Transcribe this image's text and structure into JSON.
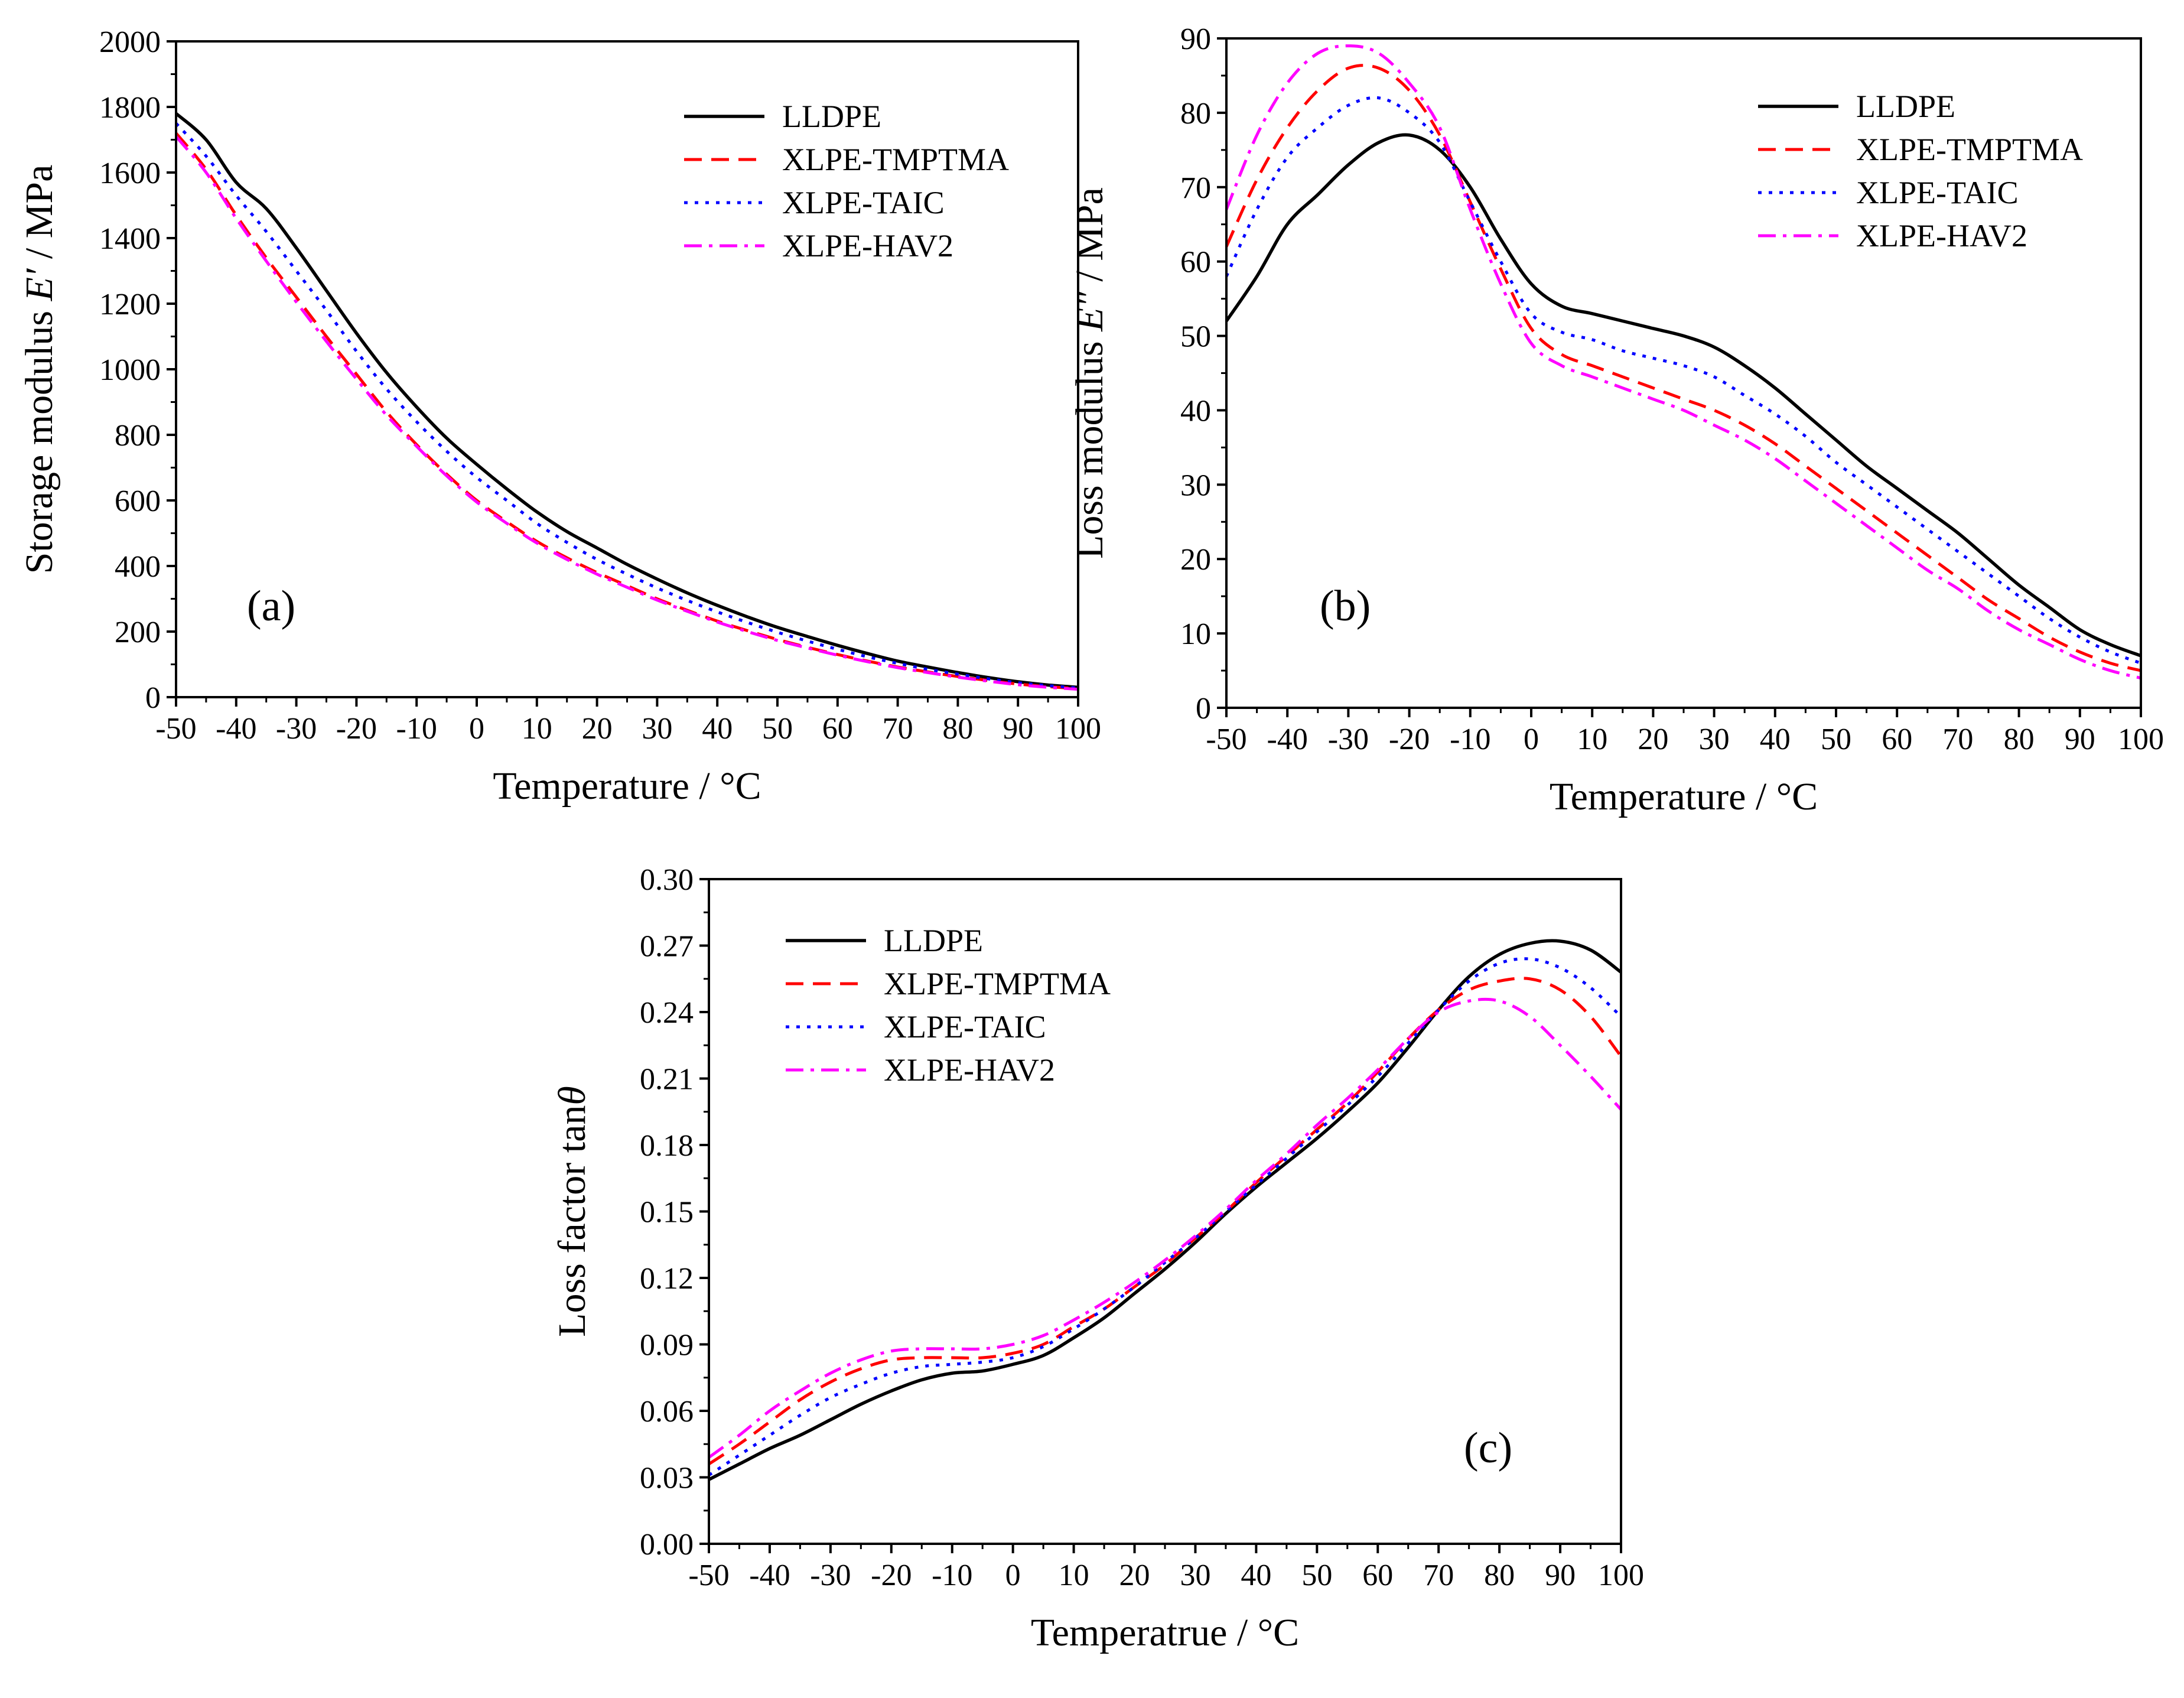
{
  "colors": {
    "LLDPE": "#000000",
    "XLPE-TMPTMA": "#ff0000",
    "XLPE-TAIC": "#0000ff",
    "XLPE-HAV2": "#ff00ff"
  },
  "chart_data": [
    {
      "id": "a",
      "type": "line",
      "panel_label": "(a)",
      "xlabel": "Temperature / °C",
      "ylabel": {
        "prefix": "Storage modulus ",
        "symbol": "E′",
        "suffix": " / MPa"
      },
      "xlim": [
        -50,
        100
      ],
      "ylim": [
        0,
        2000
      ],
      "xticks": [
        -50,
        -40,
        -30,
        -20,
        -10,
        0,
        10,
        20,
        30,
        40,
        50,
        60,
        70,
        80,
        90,
        100
      ],
      "yticks": [
        0,
        200,
        400,
        600,
        800,
        1000,
        1200,
        1400,
        1600,
        1800,
        2000
      ],
      "legend_position": "top-right",
      "x": [
        -50,
        -45,
        -40,
        -35,
        -30,
        -25,
        -20,
        -15,
        -10,
        -5,
        0,
        5,
        10,
        15,
        20,
        25,
        30,
        35,
        40,
        45,
        50,
        55,
        60,
        65,
        70,
        75,
        80,
        85,
        90,
        95,
        100
      ],
      "series": [
        {
          "name": "LLDPE",
          "style": "solid",
          "values": [
            1780,
            1700,
            1570,
            1490,
            1370,
            1240,
            1110,
            990,
            885,
            790,
            710,
            635,
            565,
            505,
            455,
            405,
            360,
            318,
            280,
            245,
            213,
            185,
            158,
            133,
            110,
            92,
            75,
            60,
            47,
            37,
            30
          ]
        },
        {
          "name": "XLPE-TMPTMA",
          "style": "dashed",
          "values": [
            1720,
            1610,
            1470,
            1340,
            1220,
            1100,
            985,
            870,
            770,
            680,
            600,
            535,
            475,
            425,
            380,
            340,
            300,
            265,
            232,
            203,
            176,
            152,
            130,
            110,
            92,
            77,
            63,
            51,
            40,
            32,
            26
          ]
        },
        {
          "name": "XLPE-TAIC",
          "style": "dotted",
          "values": [
            1750,
            1650,
            1530,
            1420,
            1300,
            1180,
            1055,
            940,
            840,
            750,
            670,
            600,
            530,
            472,
            420,
            375,
            333,
            295,
            260,
            228,
            198,
            171,
            146,
            123,
            103,
            85,
            70,
            56,
            44,
            35,
            28
          ]
        },
        {
          "name": "XLPE-HAV2",
          "style": "dashdot",
          "values": [
            1710,
            1600,
            1460,
            1330,
            1205,
            1085,
            970,
            860,
            765,
            675,
            595,
            530,
            470,
            420,
            375,
            335,
            296,
            262,
            229,
            200,
            173,
            150,
            128,
            108,
            90,
            75,
            61,
            49,
            38,
            30,
            24
          ]
        }
      ]
    },
    {
      "id": "b",
      "type": "line",
      "panel_label": "(b)",
      "xlabel": "Temperature / °C",
      "ylabel": {
        "prefix": "Loss modulus ",
        "symbol": "E″",
        "suffix": " / MPa"
      },
      "xlim": [
        -50,
        100
      ],
      "ylim": [
        0,
        90
      ],
      "xticks": [
        -50,
        -40,
        -30,
        -20,
        -10,
        0,
        10,
        20,
        30,
        40,
        50,
        60,
        70,
        80,
        90,
        100
      ],
      "yticks": [
        0,
        10,
        20,
        30,
        40,
        50,
        60,
        70,
        80,
        90
      ],
      "legend_position": "top-right",
      "x": [
        -50,
        -45,
        -40,
        -35,
        -30,
        -25,
        -20,
        -15,
        -10,
        -5,
        0,
        5,
        10,
        15,
        20,
        25,
        30,
        35,
        40,
        45,
        50,
        55,
        60,
        65,
        70,
        75,
        80,
        85,
        90,
        95,
        100
      ],
      "series": [
        {
          "name": "LLDPE",
          "style": "solid",
          "values": [
            52,
            58,
            65,
            69,
            73,
            76,
            77,
            75,
            70,
            63,
            57,
            54,
            53,
            52,
            51,
            50,
            48.5,
            46,
            43,
            39.5,
            36,
            32.5,
            29.5,
            26.5,
            23.5,
            20,
            16.5,
            13.5,
            10.5,
            8.5,
            7
          ]
        },
        {
          "name": "XLPE-TMPTMA",
          "style": "dashed",
          "values": [
            62,
            71,
            78,
            83,
            86,
            86,
            83,
            77,
            68,
            59,
            51,
            47.5,
            46,
            44.5,
            43,
            41.5,
            40,
            38,
            35.5,
            32.5,
            29.5,
            26.5,
            23.5,
            20.5,
            17.5,
            14.5,
            12,
            9.5,
            7.5,
            6,
            5
          ]
        },
        {
          "name": "XLPE-TAIC",
          "style": "dotted",
          "values": [
            58,
            67,
            74,
            78,
            81,
            82,
            80,
            76,
            68,
            60,
            53,
            50.5,
            49.5,
            48,
            47,
            46,
            44.5,
            42,
            39.5,
            36.5,
            33,
            30,
            27,
            24,
            21,
            18,
            15,
            12,
            9.5,
            7.5,
            6
          ]
        },
        {
          "name": "XLPE-HAV2",
          "style": "dashdot",
          "values": [
            67,
            77,
            84,
            88,
            89,
            88,
            84,
            78,
            67,
            57,
            49,
            46,
            44.5,
            43,
            41.5,
            40,
            38,
            36,
            33.5,
            30.5,
            27.5,
            24.5,
            21.5,
            18.5,
            16,
            13,
            10.5,
            8.5,
            6.5,
            5,
            4
          ]
        }
      ]
    },
    {
      "id": "c",
      "type": "line",
      "panel_label": "(c)",
      "xlabel": "Temperatrue / °C",
      "ylabel": {
        "prefix": "Loss factor  tan",
        "symbol": "θ",
        "suffix": ""
      },
      "xlim": [
        -50,
        100
      ],
      "ylim": [
        0,
        0.3
      ],
      "xticks": [
        -50,
        -40,
        -30,
        -20,
        -10,
        0,
        10,
        20,
        30,
        40,
        50,
        60,
        70,
        80,
        90,
        100
      ],
      "yticks": [
        0.0,
        0.03,
        0.06,
        0.09,
        0.12,
        0.15,
        0.18,
        0.21,
        0.24,
        0.27,
        0.3
      ],
      "ytick_labels": [
        "0.00",
        "0.03",
        "0.06",
        "0.09",
        "0.12",
        "0.15",
        "0.18",
        "0.21",
        "0.24",
        "0.27",
        "0.30"
      ],
      "legend_position": "top-left",
      "x": [
        -50,
        -45,
        -40,
        -35,
        -30,
        -25,
        -20,
        -15,
        -10,
        -5,
        0,
        5,
        10,
        15,
        20,
        25,
        30,
        35,
        40,
        45,
        50,
        55,
        60,
        65,
        70,
        75,
        80,
        85,
        90,
        95,
        100
      ],
      "series": [
        {
          "name": "LLDPE",
          "style": "solid",
          "values": [
            0.029,
            0.036,
            0.043,
            0.049,
            0.056,
            0.063,
            0.069,
            0.074,
            0.077,
            0.078,
            0.081,
            0.085,
            0.093,
            0.102,
            0.113,
            0.124,
            0.136,
            0.149,
            0.161,
            0.172,
            0.183,
            0.195,
            0.208,
            0.224,
            0.241,
            0.256,
            0.266,
            0.271,
            0.272,
            0.268,
            0.258
          ]
        },
        {
          "name": "XLPE-TMPTMA",
          "style": "dashed",
          "values": [
            0.036,
            0.045,
            0.055,
            0.065,
            0.073,
            0.079,
            0.083,
            0.084,
            0.084,
            0.084,
            0.086,
            0.09,
            0.098,
            0.106,
            0.116,
            0.126,
            0.138,
            0.15,
            0.163,
            0.175,
            0.187,
            0.199,
            0.213,
            0.228,
            0.241,
            0.25,
            0.254,
            0.255,
            0.25,
            0.238,
            0.22
          ]
        },
        {
          "name": "XLPE-TAIC",
          "style": "dotted",
          "values": [
            0.031,
            0.04,
            0.049,
            0.058,
            0.066,
            0.072,
            0.077,
            0.08,
            0.081,
            0.082,
            0.084,
            0.089,
            0.097,
            0.106,
            0.116,
            0.127,
            0.138,
            0.15,
            0.162,
            0.174,
            0.186,
            0.198,
            0.211,
            0.226,
            0.241,
            0.254,
            0.262,
            0.264,
            0.26,
            0.251,
            0.238
          ]
        },
        {
          "name": "XLPE-HAV2",
          "style": "dashdot",
          "values": [
            0.039,
            0.049,
            0.06,
            0.069,
            0.077,
            0.083,
            0.087,
            0.088,
            0.088,
            0.088,
            0.09,
            0.094,
            0.101,
            0.109,
            0.118,
            0.128,
            0.139,
            0.151,
            0.164,
            0.176,
            0.189,
            0.201,
            0.214,
            0.228,
            0.24,
            0.245,
            0.245,
            0.238,
            0.225,
            0.211,
            0.196
          ]
        }
      ]
    }
  ]
}
